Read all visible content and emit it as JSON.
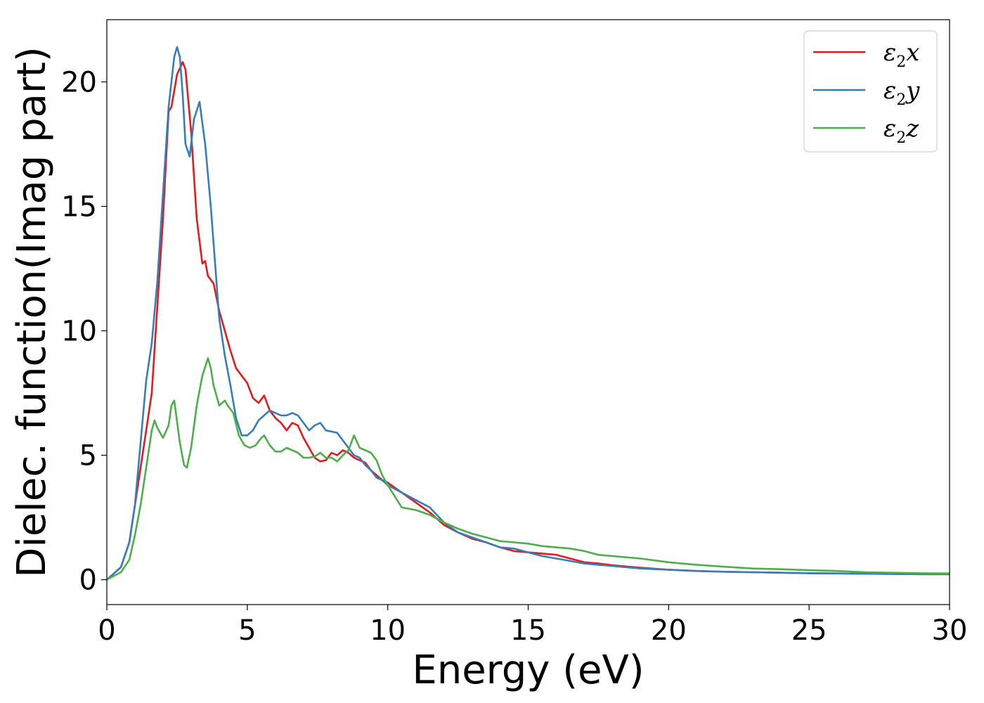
{
  "chart_data": {
    "type": "line",
    "title": "",
    "xlabel": "Energy (eV)",
    "ylabel": "Dielec. function(Imag part)",
    "xlim": [
      0,
      30
    ],
    "ylim": [
      -1,
      22.5
    ],
    "xticks": [
      0,
      5,
      10,
      15,
      20,
      25,
      30
    ],
    "yticks": [
      0,
      5,
      10,
      15,
      20
    ],
    "grid": false,
    "legend_position": "top-right",
    "series": [
      {
        "name": "ε₂x",
        "legend_main": "ε",
        "legend_sub": "2",
        "legend_var": "x",
        "color": "#e41a1c",
        "x": [
          0,
          0.5,
          0.8,
          1.0,
          1.2,
          1.4,
          1.6,
          1.8,
          2.0,
          2.2,
          2.3,
          2.5,
          2.7,
          2.8,
          3.0,
          3.2,
          3.4,
          3.5,
          3.6,
          3.8,
          4.0,
          4.2,
          4.4,
          4.6,
          4.8,
          5.0,
          5.2,
          5.4,
          5.6,
          5.8,
          6.0,
          6.2,
          6.4,
          6.6,
          6.8,
          7.0,
          7.2,
          7.4,
          7.6,
          7.8,
          8.0,
          8.2,
          8.4,
          8.6,
          8.8,
          9.0,
          9.2,
          9.4,
          9.6,
          9.8,
          10.0,
          10.5,
          11.0,
          11.5,
          12.0,
          12.5,
          13.0,
          13.5,
          14.0,
          14.5,
          15.0,
          15.5,
          16.0,
          16.5,
          17.0,
          17.5,
          18.0,
          19.0,
          20.0,
          21.0,
          22.0,
          23.0,
          24.0,
          25.0,
          26.0,
          27.0,
          28.0,
          29.0,
          30.0
        ],
        "y": [
          0,
          0.5,
          1.5,
          3.0,
          4.5,
          6.0,
          7.5,
          11.0,
          14.5,
          18.8,
          19.0,
          20.3,
          20.8,
          20.5,
          18.0,
          14.5,
          12.7,
          12.8,
          12.2,
          11.9,
          10.8,
          10.0,
          9.2,
          8.5,
          8.2,
          7.9,
          7.3,
          7.1,
          7.4,
          6.8,
          6.5,
          6.3,
          6.0,
          6.3,
          6.2,
          5.7,
          5.3,
          4.9,
          4.75,
          4.8,
          5.1,
          5.0,
          5.2,
          5.1,
          4.9,
          4.8,
          4.7,
          4.4,
          4.2,
          4.0,
          3.9,
          3.5,
          3.1,
          2.7,
          2.2,
          1.9,
          1.65,
          1.5,
          1.3,
          1.15,
          1.1,
          1.05,
          1.0,
          0.85,
          0.7,
          0.65,
          0.58,
          0.48,
          0.4,
          0.35,
          0.32,
          0.3,
          0.28,
          0.26,
          0.25,
          0.24,
          0.23,
          0.22,
          0.22
        ]
      },
      {
        "name": "ε₂y",
        "legend_main": "ε",
        "legend_sub": "2",
        "legend_var": "y",
        "color": "#377eb8",
        "x": [
          0,
          0.5,
          0.8,
          1.0,
          1.2,
          1.4,
          1.6,
          1.8,
          2.0,
          2.2,
          2.4,
          2.5,
          2.6,
          2.7,
          2.8,
          2.95,
          3.1,
          3.3,
          3.5,
          3.7,
          3.8,
          3.9,
          4.0,
          4.2,
          4.4,
          4.6,
          4.8,
          5.0,
          5.2,
          5.4,
          5.6,
          5.8,
          6.0,
          6.2,
          6.4,
          6.6,
          6.8,
          7.0,
          7.2,
          7.4,
          7.6,
          7.8,
          8.0,
          8.2,
          8.4,
          8.6,
          8.8,
          9.0,
          9.2,
          9.4,
          9.6,
          9.8,
          10.0,
          10.5,
          11.0,
          11.5,
          12.0,
          12.5,
          13.0,
          13.5,
          14.0,
          14.5,
          15.0,
          15.5,
          16.0,
          16.5,
          17.0,
          17.5,
          18.0,
          19.0,
          20.0,
          21.0,
          22.0,
          23.0,
          24.0,
          25.0,
          26.0,
          27.0,
          28.0,
          29.0,
          30.0
        ],
        "y": [
          0,
          0.5,
          1.5,
          3.0,
          5.5,
          8.0,
          9.5,
          12.0,
          15.5,
          19.0,
          21.0,
          21.4,
          21.0,
          19.5,
          17.5,
          17.0,
          18.5,
          19.2,
          17.5,
          15.0,
          13.5,
          12.0,
          10.5,
          9.0,
          7.8,
          6.5,
          5.8,
          5.8,
          6.0,
          6.4,
          6.6,
          6.8,
          6.7,
          6.6,
          6.6,
          6.7,
          6.6,
          6.3,
          6.0,
          6.2,
          6.3,
          6.0,
          5.95,
          5.9,
          5.6,
          5.3,
          5.0,
          4.9,
          4.6,
          4.4,
          4.1,
          4.0,
          3.8,
          3.5,
          3.2,
          2.9,
          2.3,
          1.9,
          1.7,
          1.5,
          1.3,
          1.25,
          1.1,
          0.95,
          0.85,
          0.75,
          0.65,
          0.6,
          0.55,
          0.45,
          0.4,
          0.35,
          0.32,
          0.3,
          0.28,
          0.26,
          0.25,
          0.24,
          0.23,
          0.22,
          0.22
        ]
      },
      {
        "name": "ε₂z",
        "legend_main": "ε",
        "legend_sub": "2",
        "legend_var": "z",
        "color": "#4daf4a",
        "x": [
          0,
          0.5,
          0.8,
          1.0,
          1.2,
          1.4,
          1.6,
          1.7,
          1.8,
          2.0,
          2.2,
          2.3,
          2.4,
          2.6,
          2.75,
          2.85,
          3.0,
          3.2,
          3.4,
          3.6,
          3.7,
          3.8,
          4.0,
          4.2,
          4.3,
          4.5,
          4.7,
          4.9,
          5.1,
          5.3,
          5.5,
          5.6,
          5.8,
          6.0,
          6.2,
          6.4,
          6.6,
          6.8,
          7.0,
          7.2,
          7.4,
          7.6,
          7.8,
          8.0,
          8.2,
          8.4,
          8.6,
          8.8,
          9.0,
          9.2,
          9.4,
          9.6,
          9.8,
          10.0,
          10.5,
          11.0,
          11.5,
          12.0,
          12.5,
          13.0,
          13.5,
          14.0,
          14.5,
          15.0,
          15.5,
          16.0,
          16.5,
          17.0,
          17.5,
          18.0,
          19.0,
          20.0,
          21.0,
          22.0,
          23.0,
          24.0,
          25.0,
          26.0,
          27.0,
          28.0,
          29.0,
          30.0
        ],
        "y": [
          0,
          0.3,
          0.8,
          1.8,
          3.0,
          4.5,
          6.0,
          6.4,
          6.1,
          5.7,
          6.2,
          7.0,
          7.2,
          5.5,
          4.6,
          4.5,
          5.3,
          7.0,
          8.2,
          8.9,
          8.5,
          7.8,
          7.0,
          7.2,
          7.0,
          6.7,
          5.8,
          5.4,
          5.3,
          5.4,
          5.7,
          5.8,
          5.4,
          5.15,
          5.15,
          5.3,
          5.2,
          5.1,
          4.9,
          4.9,
          4.95,
          5.1,
          4.9,
          4.9,
          4.75,
          5.0,
          5.2,
          5.8,
          5.3,
          5.2,
          5.1,
          4.8,
          4.2,
          3.8,
          2.9,
          2.8,
          2.6,
          2.3,
          2.05,
          1.85,
          1.7,
          1.55,
          1.5,
          1.45,
          1.35,
          1.3,
          1.25,
          1.15,
          1.0,
          0.95,
          0.85,
          0.7,
          0.6,
          0.52,
          0.45,
          0.42,
          0.38,
          0.35,
          0.3,
          0.28,
          0.26,
          0.25
        ]
      }
    ]
  }
}
